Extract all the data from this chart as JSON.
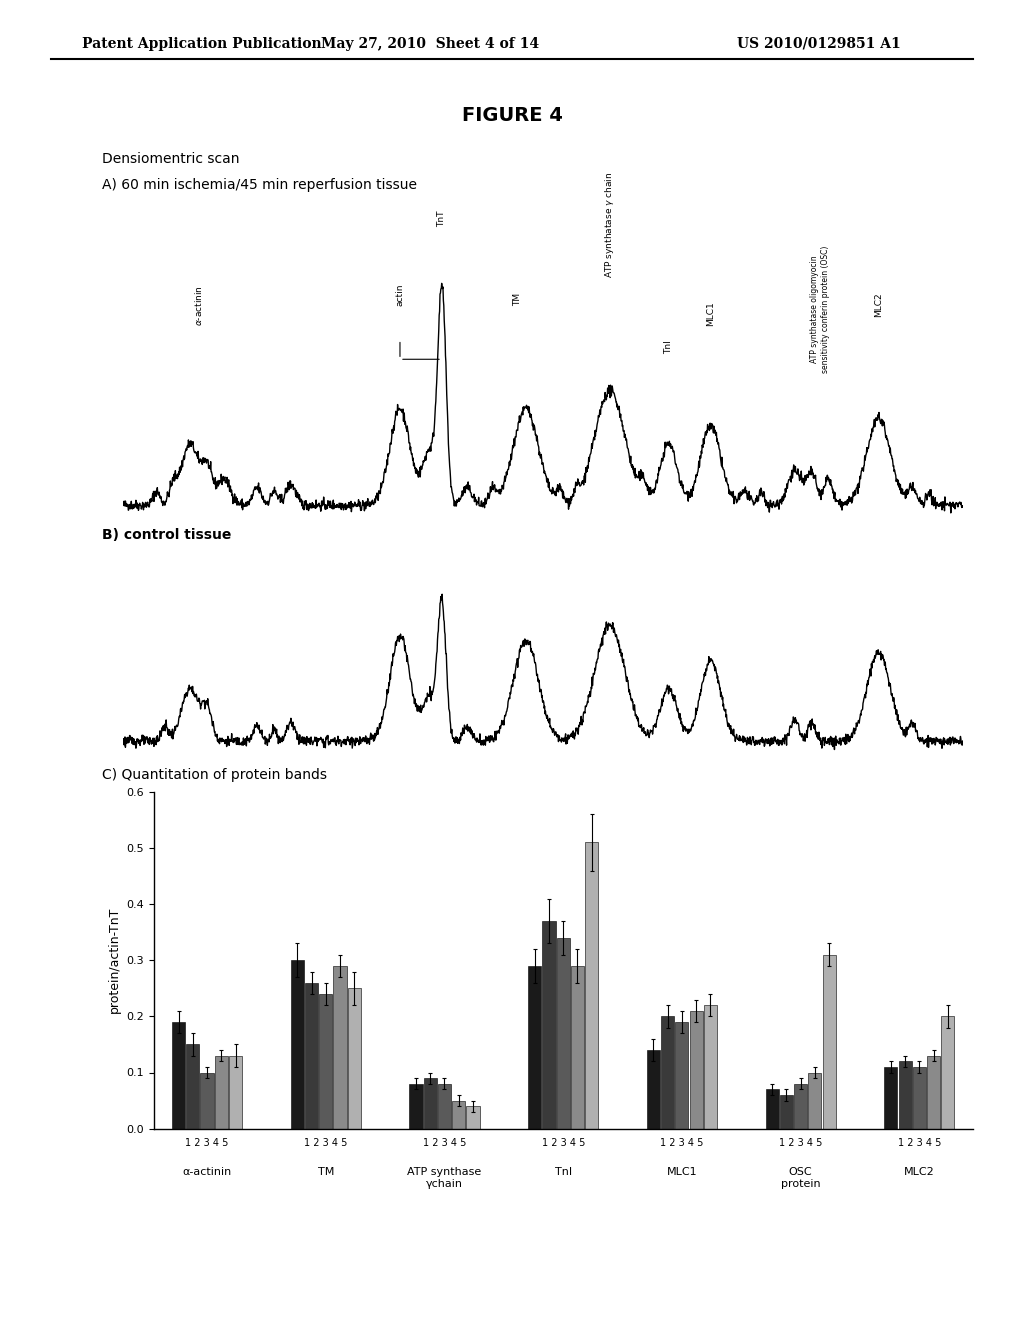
{
  "header_left": "Patent Application Publication",
  "header_mid": "May 27, 2010  Sheet 4 of 14",
  "header_right": "US 2010/0129851 A1",
  "figure_title": "FIGURE 4",
  "densio_label": "Densiomentric scan",
  "panel_a_label": "A) 60 min ischemia/45 min reperfusion tissue",
  "panel_b_label": "B) control tissue",
  "panel_c_label": "C) Quantitation of protein bands",
  "ylabel_bar": "protein/actin-TnT",
  "bar_categories": [
    "α-actinin",
    "TM",
    "ATP synthase\nγchain",
    "TnI",
    "MLC1",
    "OSC\nprotein",
    "MLC2"
  ],
  "bar_xtick_labels": [
    "1 2 3 4 5",
    "1 2 3 4 5",
    "1 2 3 4 5",
    "1 2 3 4 5",
    "1 2 3 4 5",
    "1 2 3 4 5",
    "1 2 3 4 5"
  ],
  "bar_data": {
    "1": [
      0.19,
      0.3,
      0.08,
      0.29,
      0.14,
      0.07,
      0.11
    ],
    "2": [
      0.15,
      0.26,
      0.09,
      0.37,
      0.2,
      0.06,
      0.12
    ],
    "3": [
      0.1,
      0.24,
      0.08,
      0.34,
      0.19,
      0.08,
      0.11
    ],
    "4": [
      0.13,
      0.29,
      0.05,
      0.29,
      0.21,
      0.1,
      0.13
    ],
    "5": [
      0.13,
      0.25,
      0.04,
      0.51,
      0.22,
      0.31,
      0.2
    ]
  },
  "bar_errors": {
    "1": [
      0.02,
      0.03,
      0.01,
      0.03,
      0.02,
      0.01,
      0.01
    ],
    "2": [
      0.02,
      0.02,
      0.01,
      0.04,
      0.02,
      0.01,
      0.01
    ],
    "3": [
      0.01,
      0.02,
      0.01,
      0.03,
      0.02,
      0.01,
      0.01
    ],
    "4": [
      0.01,
      0.02,
      0.01,
      0.03,
      0.02,
      0.01,
      0.01
    ],
    "5": [
      0.02,
      0.03,
      0.01,
      0.05,
      0.02,
      0.02,
      0.02
    ]
  },
  "bar_colors": [
    "#1a1a1a",
    "#3a3a3a",
    "#5a5a5a",
    "#8a8a8a",
    "#b0b0b0"
  ],
  "ylim_bar": [
    0,
    0.6
  ],
  "yticks_bar": [
    0,
    0.1,
    0.2,
    0.3,
    0.4,
    0.5,
    0.6
  ],
  "background_color": "#ffffff",
  "text_color": "#000000"
}
